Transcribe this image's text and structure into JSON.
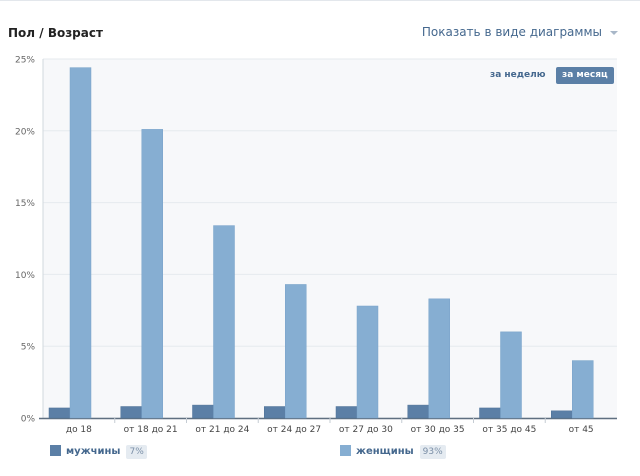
{
  "header": {
    "title": "Пол / Возраст",
    "view_toggle_label": "Показать в виде диаграммы"
  },
  "period": {
    "week_label": "за неделю",
    "month_label": "за месяц",
    "selected": "month"
  },
  "legend": [
    {
      "name": "мужчины",
      "percent": "7%",
      "color": "#5b7fa6"
    },
    {
      "name": "женщины",
      "percent": "93%",
      "color": "#86aed2"
    }
  ],
  "chart_data": {
    "type": "bar",
    "categories": [
      "до 18",
      "от 18 до 21",
      "от 21 до 24",
      "от 24 до 27",
      "от 27 до 30",
      "от 30 до 35",
      "от 35 до 45",
      "от 45"
    ],
    "series": [
      {
        "name": "мужчины",
        "values": [
          0.7,
          0.8,
          0.9,
          0.8,
          0.8,
          0.9,
          0.7,
          0.5
        ],
        "color": "#5b7fa6"
      },
      {
        "name": "женщины",
        "values": [
          24.4,
          20.1,
          13.4,
          9.3,
          7.8,
          8.3,
          6.0,
          4.0
        ],
        "color": "#86aed2"
      }
    ],
    "ylim": [
      0,
      25
    ],
    "yticks": [
      0,
      5,
      10,
      15,
      20,
      25
    ],
    "ytick_labels": [
      "0%",
      "5%",
      "10%",
      "15%",
      "20%",
      "25%"
    ],
    "grid": true,
    "xlabel": "",
    "ylabel": ""
  }
}
